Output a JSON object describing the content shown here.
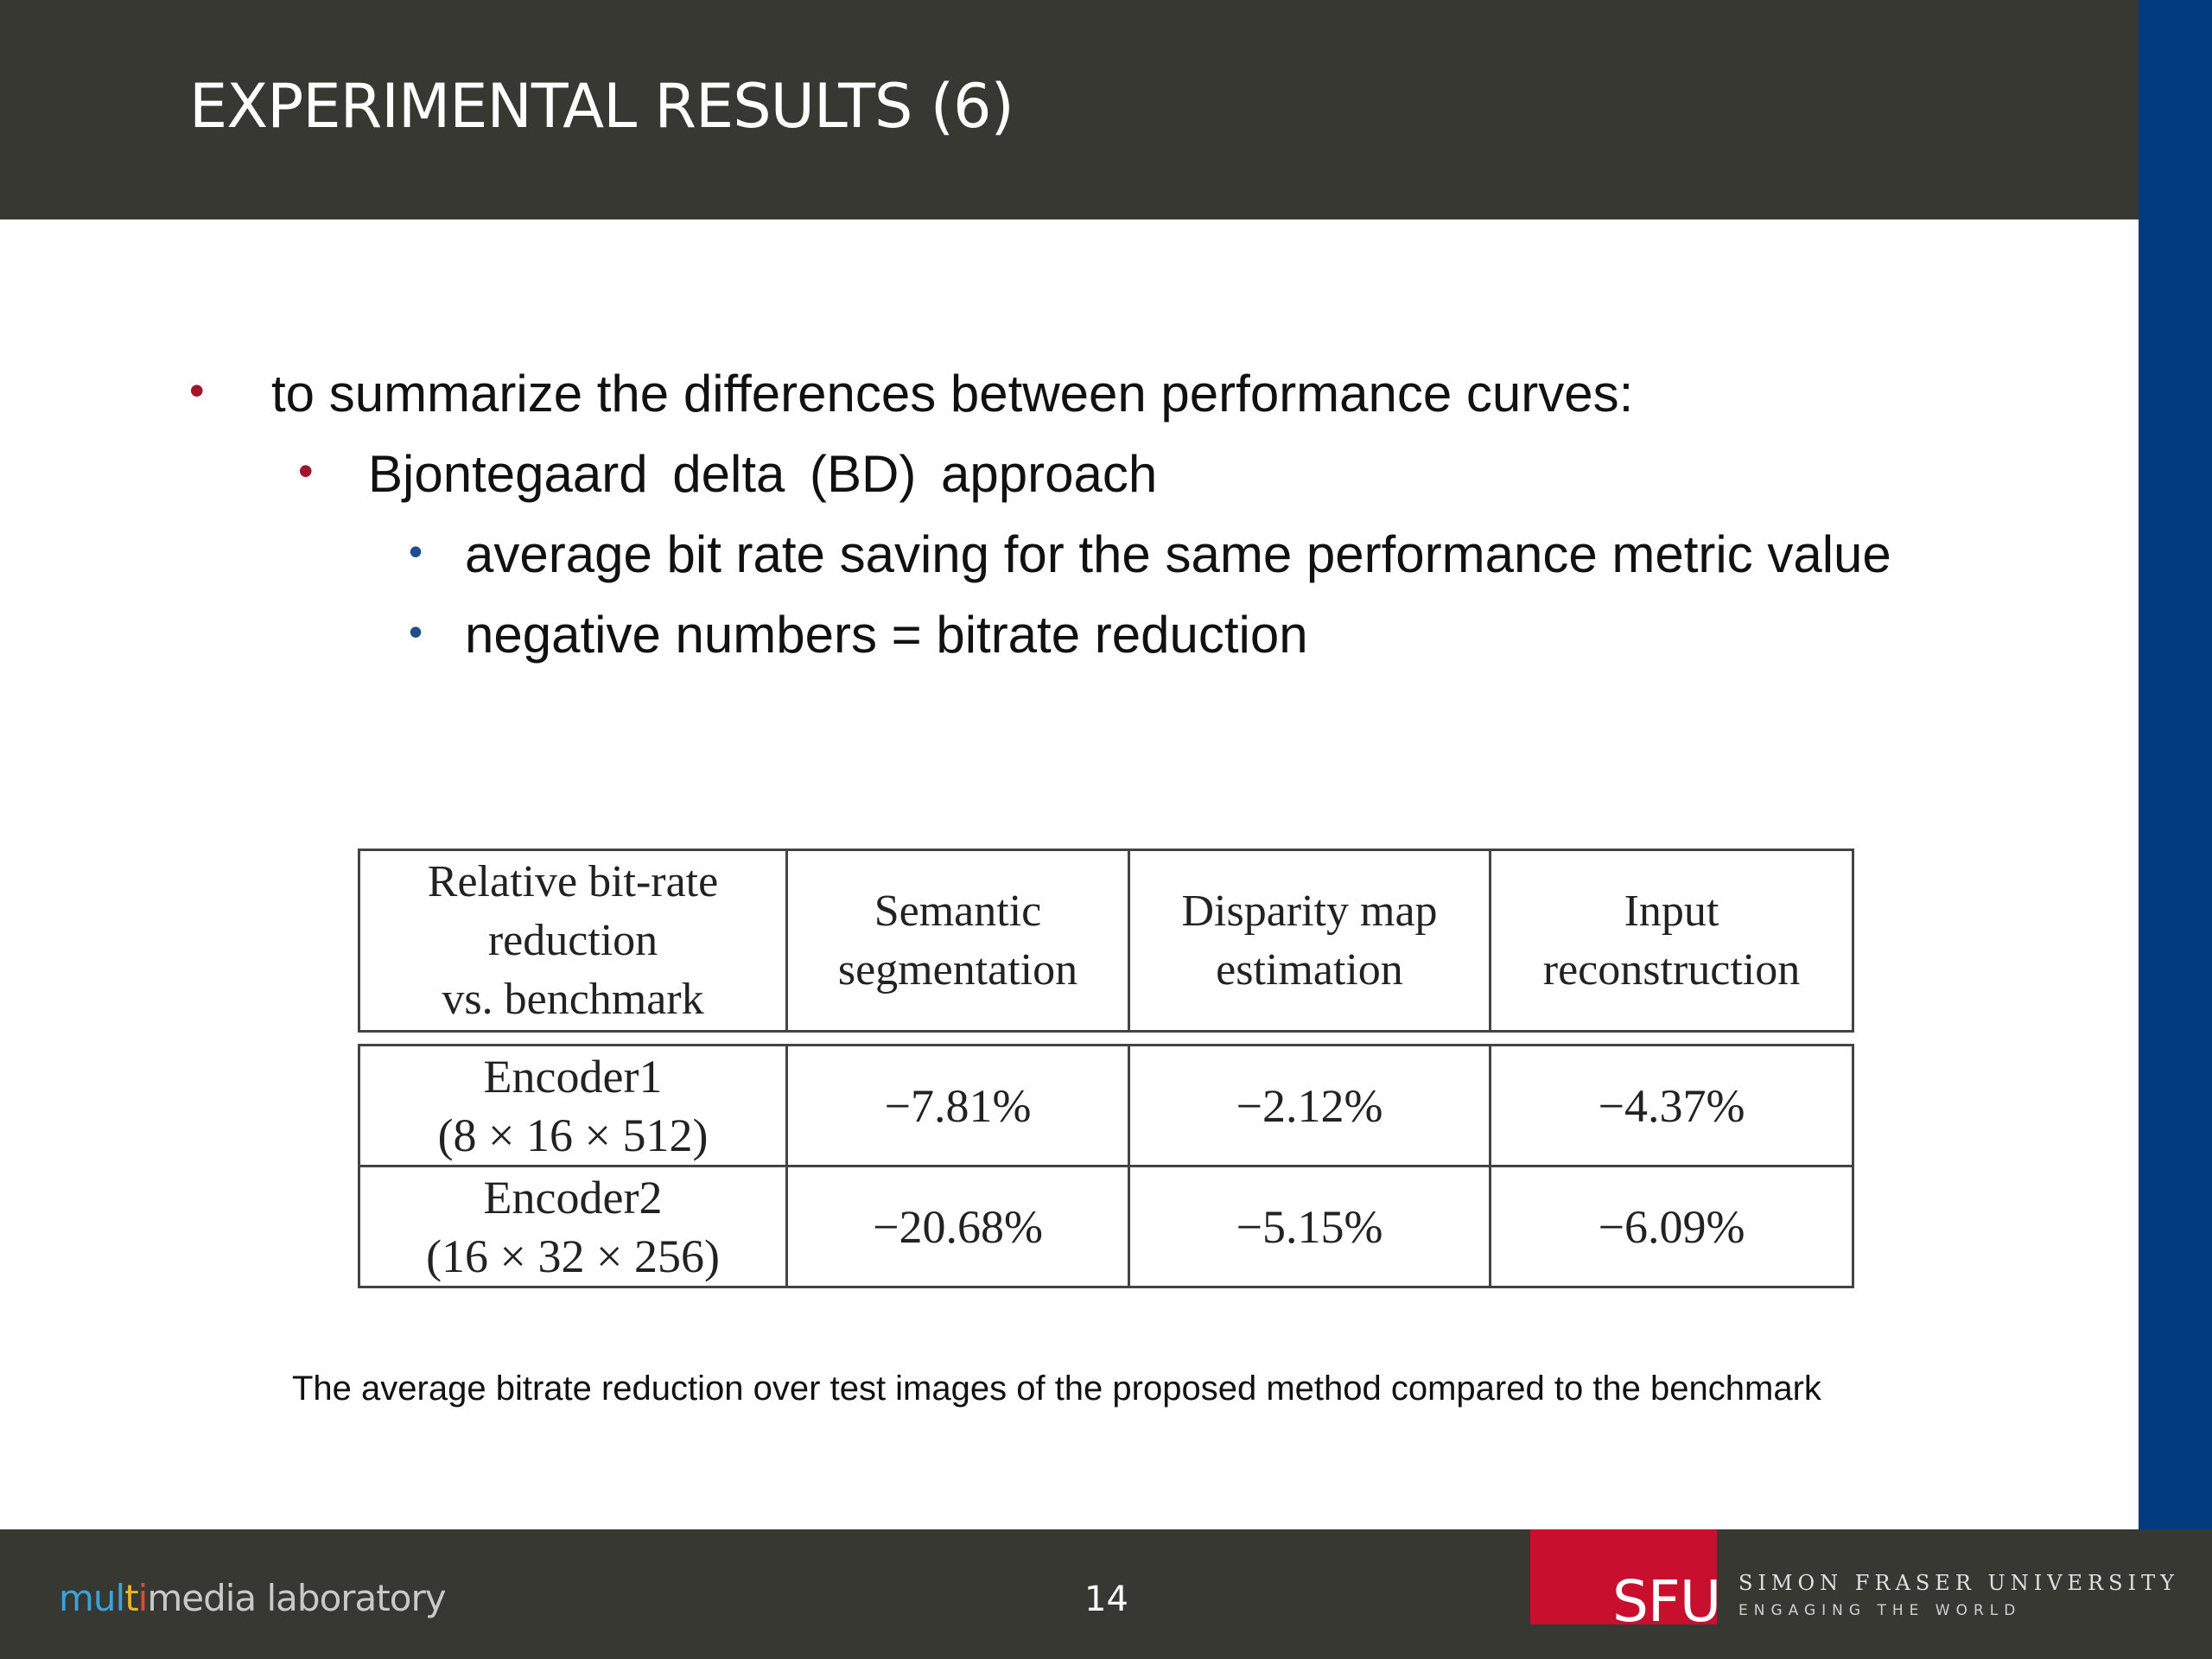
{
  "slide": {
    "title": "EXPERIMENTAL RESULTS (6)",
    "page_number": "14"
  },
  "bullets": {
    "marker": "•",
    "items": [
      {
        "level": 1,
        "text": "to summarize the differences between performance curves:"
      },
      {
        "level": 2,
        "text": "Bjontegaard delta (BD) approach"
      },
      {
        "level": 3,
        "text": "average bit rate saving for the same performance metric value"
      },
      {
        "level": 3,
        "text": "negative numbers = bitrate reduction"
      }
    ]
  },
  "table": {
    "header": {
      "col0": [
        "Relative bit-rate",
        "reduction",
        "vs. benchmark"
      ],
      "col1": [
        "Semantic",
        "segmentation"
      ],
      "col2": [
        "Disparity map",
        "estimation"
      ],
      "col3": [
        "Input",
        "reconstruction"
      ]
    },
    "rows": [
      {
        "name": [
          "Encoder1",
          "(8 × 16 × 512)"
        ],
        "values": [
          "−7.81%",
          "−2.12%",
          "−4.37%"
        ]
      },
      {
        "name": [
          "Encoder2",
          "(16 × 32 × 256)"
        ],
        "values": [
          "−20.68%",
          "−5.15%",
          "−6.09%"
        ]
      }
    ]
  },
  "caption": "The average bitrate reduction over test images of the proposed method compared to the benchmark",
  "footer": {
    "lab_logo": {
      "p1": "mul",
      "p2": "t",
      "p3": "i",
      "p4": "media laboratory"
    },
    "sfu_logo": "SFU",
    "university_name": "SIMON FRASER UNIVERSITY",
    "tagline": "ENGAGING THE WORLD"
  },
  "colors": {
    "header_bg": "#383833",
    "right_band": "#003c7d",
    "bullet_red": "#a1142e",
    "bullet_blue": "#1f4e8c",
    "sfu_red": "#c8102e"
  }
}
